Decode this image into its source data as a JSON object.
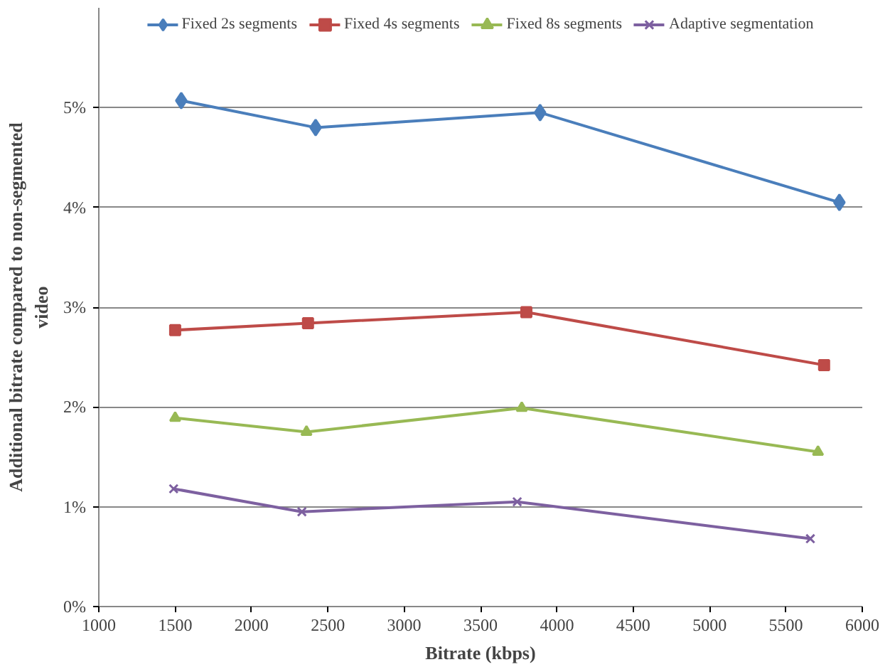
{
  "chart_data": {
    "type": "line",
    "xlabel": "Bitrate (kbps)",
    "ylabel": "Additional bitrate compared to non-segmented video",
    "xlim": [
      1000,
      6000
    ],
    "xticks": [
      1000,
      1500,
      2000,
      2500,
      3000,
      3500,
      4000,
      4500,
      5000,
      5500,
      6000
    ],
    "ylim": [
      0,
      6
    ],
    "yticks": [
      {
        "value": 0,
        "label": "0%"
      },
      {
        "value": 1,
        "label": "1%"
      },
      {
        "value": 2,
        "label": "2%"
      },
      {
        "value": 3,
        "label": "3%"
      },
      {
        "value": 4,
        "label": "4%"
      },
      {
        "value": 5,
        "label": "5%"
      }
    ],
    "grid": "y",
    "legend": "top",
    "line_style": "solid",
    "series": [
      {
        "name": "Fixed 2s segments",
        "color": "#4a7ebb",
        "marker": "diamond",
        "x": [
          1540,
          2420,
          3890,
          5850
        ],
        "values": [
          5.07,
          4.8,
          4.95,
          4.05
        ]
      },
      {
        "name": "Fixed 4s segments",
        "color": "#be4b48",
        "marker": "square",
        "x": [
          1500,
          2370,
          3800,
          5750
        ],
        "values": [
          2.77,
          2.84,
          2.95,
          2.42
        ]
      },
      {
        "name": "Fixed 8s segments",
        "color": "#98b954",
        "marker": "triangle",
        "x": [
          1500,
          2360,
          3770,
          5710
        ],
        "values": [
          1.89,
          1.75,
          1.99,
          1.55
        ]
      },
      {
        "name": "Adaptive segmentation",
        "color": "#7d60a0",
        "marker": "cross",
        "x": [
          1490,
          2330,
          3740,
          5660
        ],
        "values": [
          1.18,
          0.95,
          1.05,
          0.68
        ]
      }
    ]
  }
}
